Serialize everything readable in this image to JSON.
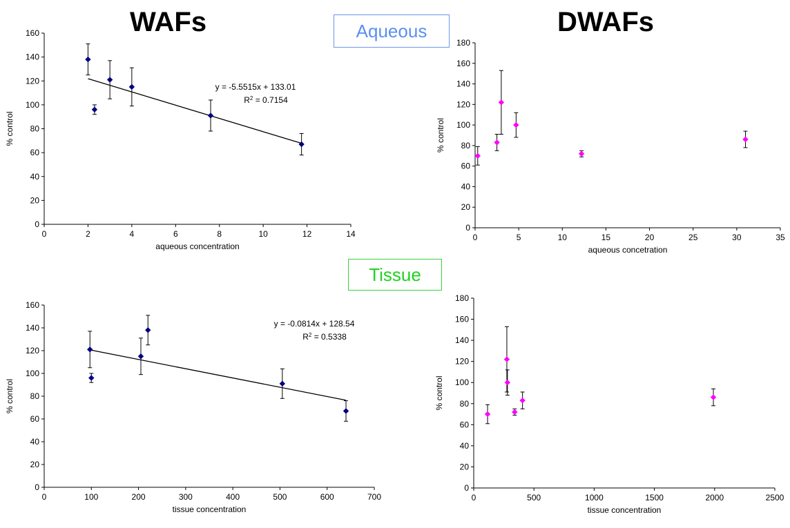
{
  "titles": {
    "left": "WAFs",
    "right": "DWAFs"
  },
  "labels": {
    "aqueous": "Aqueous",
    "tissue": "Tissue"
  },
  "colors": {
    "waf_marker": "#000080",
    "dwaf_marker": "#ff00ff",
    "aqueous_box": "#5b8ff0",
    "tissue_box": "#21d121"
  },
  "chart_data": [
    {
      "id": "waf-aqueous",
      "type": "scatter",
      "xlabel": "aqueous concentration",
      "ylabel": "% control",
      "xlim": [
        0,
        14
      ],
      "ylim": [
        0,
        160
      ],
      "xticks": [
        0,
        2,
        4,
        6,
        8,
        10,
        12,
        14
      ],
      "yticks": [
        0,
        20,
        40,
        60,
        80,
        100,
        120,
        140,
        160
      ],
      "marker_color": "#000080",
      "points": [
        {
          "x": 2.0,
          "y": 138,
          "err": 13
        },
        {
          "x": 2.3,
          "y": 96,
          "err": 4
        },
        {
          "x": 3.0,
          "y": 121,
          "err": 16
        },
        {
          "x": 4.0,
          "y": 115,
          "err": 16
        },
        {
          "x": 7.6,
          "y": 91,
          "err": 13
        },
        {
          "x": 11.75,
          "y": 67,
          "err": 9
        }
      ],
      "trendline": {
        "slope": -5.5515,
        "intercept": 133.01,
        "x_range": [
          2.0,
          11.75
        ]
      },
      "annotation": {
        "equation": "y = -5.5515x + 133.01",
        "r2_prefix": "R",
        "r2_value": " = 0.7154"
      }
    },
    {
      "id": "dwaf-aqueous",
      "type": "scatter",
      "xlabel": "aqueous concetration",
      "ylabel": "% control",
      "xlim": [
        0,
        35
      ],
      "ylim": [
        0,
        180
      ],
      "xticks": [
        0,
        5,
        10,
        15,
        20,
        25,
        30,
        35
      ],
      "yticks": [
        0,
        20,
        40,
        60,
        80,
        100,
        120,
        140,
        160,
        180
      ],
      "marker_color": "#ff00ff",
      "points": [
        {
          "x": 0.3,
          "y": 70,
          "err": 9
        },
        {
          "x": 2.5,
          "y": 83,
          "err": 8
        },
        {
          "x": 3.0,
          "y": 122,
          "err": 31
        },
        {
          "x": 4.7,
          "y": 100,
          "err": 12
        },
        {
          "x": 12.2,
          "y": 72,
          "err": 3
        },
        {
          "x": 31.0,
          "y": 86,
          "err": 8
        }
      ]
    },
    {
      "id": "waf-tissue",
      "type": "scatter",
      "xlabel": "tissue concentration",
      "ylabel": "% control",
      "xlim": [
        0,
        700
      ],
      "ylim": [
        0,
        160
      ],
      "xticks": [
        0,
        100,
        200,
        300,
        400,
        500,
        600,
        700
      ],
      "yticks": [
        0,
        20,
        40,
        60,
        80,
        100,
        120,
        140,
        160
      ],
      "marker_color": "#000080",
      "points": [
        {
          "x": 97,
          "y": 121,
          "err": 16
        },
        {
          "x": 100,
          "y": 96,
          "err": 4
        },
        {
          "x": 205,
          "y": 115,
          "err": 16
        },
        {
          "x": 220,
          "y": 138,
          "err": 13
        },
        {
          "x": 505,
          "y": 91,
          "err": 13
        },
        {
          "x": 640,
          "y": 67,
          "err": 9
        }
      ],
      "trendline": {
        "slope": -0.0814,
        "intercept": 128.54,
        "x_range": [
          97,
          640
        ]
      },
      "annotation": {
        "equation": "y = -0.0814x + 128.54",
        "r2_prefix": "R",
        "r2_value": " = 0.5338"
      }
    },
    {
      "id": "dwaf-tissue",
      "type": "scatter",
      "xlabel": "tissue concentration",
      "ylabel": "% control",
      "xlim": [
        0,
        2500
      ],
      "ylim": [
        0,
        180
      ],
      "xticks": [
        0,
        500,
        1000,
        1500,
        2000,
        2500
      ],
      "yticks": [
        0,
        20,
        40,
        60,
        80,
        100,
        120,
        140,
        160,
        180
      ],
      "marker_color": "#ff00ff",
      "points": [
        {
          "x": 115,
          "y": 70,
          "err": 9
        },
        {
          "x": 275,
          "y": 122,
          "err": 31
        },
        {
          "x": 280,
          "y": 100,
          "err": 12
        },
        {
          "x": 340,
          "y": 72,
          "err": 3
        },
        {
          "x": 405,
          "y": 83,
          "err": 8
        },
        {
          "x": 1990,
          "y": 86,
          "err": 8
        }
      ]
    }
  ]
}
